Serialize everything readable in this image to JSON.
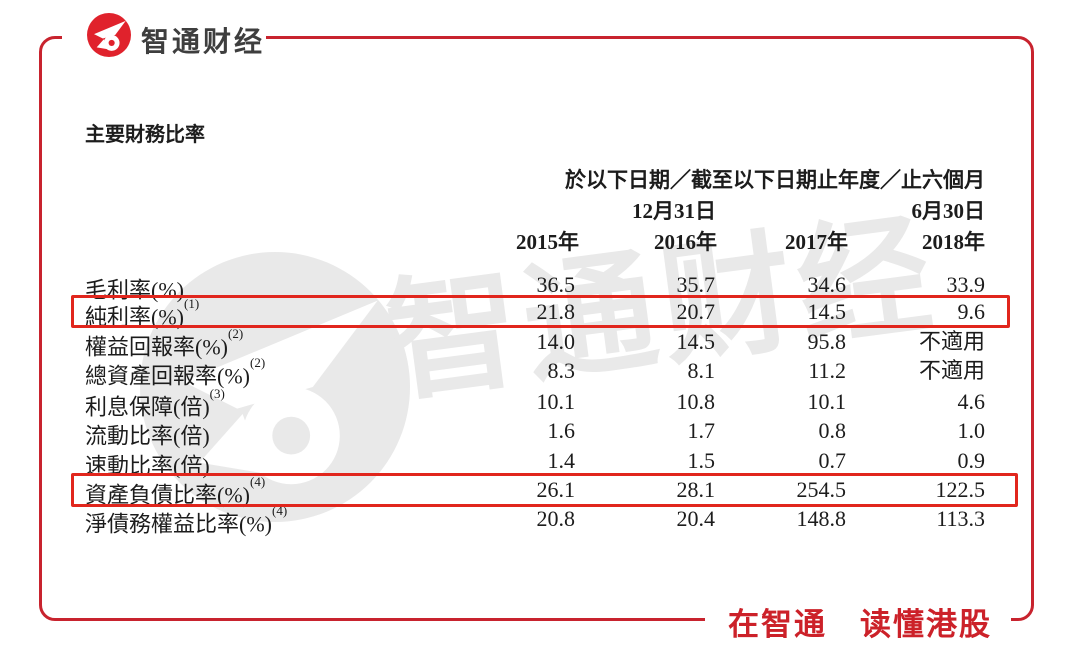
{
  "brand": {
    "logo_text": "智通财经",
    "slogan": "在智通　读懂港股",
    "watermark_text": "智通财经"
  },
  "title": "主要財務比率",
  "table": {
    "header_line1": "於以下日期／截至以下日期止年度／止六個月",
    "date_headers": [
      "12月31日",
      "6月30日"
    ],
    "year_headers": [
      "2015年",
      "2016年",
      "2017年",
      "2018年"
    ],
    "rows": [
      {
        "label": "毛利率(%)",
        "sup": "",
        "values": [
          "36.5",
          "35.7",
          "34.6",
          "33.9"
        ],
        "highlighted": false
      },
      {
        "label": "純利率(%)",
        "sup": "(1)",
        "values": [
          "21.8",
          "20.7",
          "14.5",
          "9.6"
        ],
        "highlighted": true
      },
      {
        "label": "權益回報率(%)",
        "sup": "(2)",
        "values": [
          "14.0",
          "14.5",
          "95.8",
          "不適用"
        ],
        "highlighted": false
      },
      {
        "label": "總資產回報率(%)",
        "sup": "(2)",
        "values": [
          "8.3",
          "8.1",
          "11.2",
          "不適用"
        ],
        "highlighted": false
      },
      {
        "label": "利息保障(倍)",
        "sup": "(3)",
        "values": [
          "10.1",
          "10.8",
          "10.1",
          "4.6"
        ],
        "highlighted": false
      },
      {
        "label": "流動比率(倍)",
        "sup": "",
        "values": [
          "1.6",
          "1.7",
          "0.8",
          "1.0"
        ],
        "highlighted": false
      },
      {
        "label": "速動比率(倍)",
        "sup": "",
        "values": [
          "1.4",
          "1.5",
          "0.7",
          "0.9"
        ],
        "highlighted": false
      },
      {
        "label": "資產負債比率(%)",
        "sup": "(4)",
        "values": [
          "26.1",
          "28.1",
          "254.5",
          "122.5"
        ],
        "highlighted": true
      },
      {
        "label": "淨債務權益比率(%)",
        "sup": "(4)",
        "values": [
          "20.8",
          "20.4",
          "148.8",
          "113.3"
        ],
        "highlighted": false
      }
    ]
  },
  "colors": {
    "brand_red": "#cc2129",
    "frame_red": "#c8232e",
    "highlight_red": "#e1261d",
    "logo_red": "#e0222c",
    "text_dark": "#1c1c1c",
    "watermark_gray": "#e9e9e9"
  }
}
